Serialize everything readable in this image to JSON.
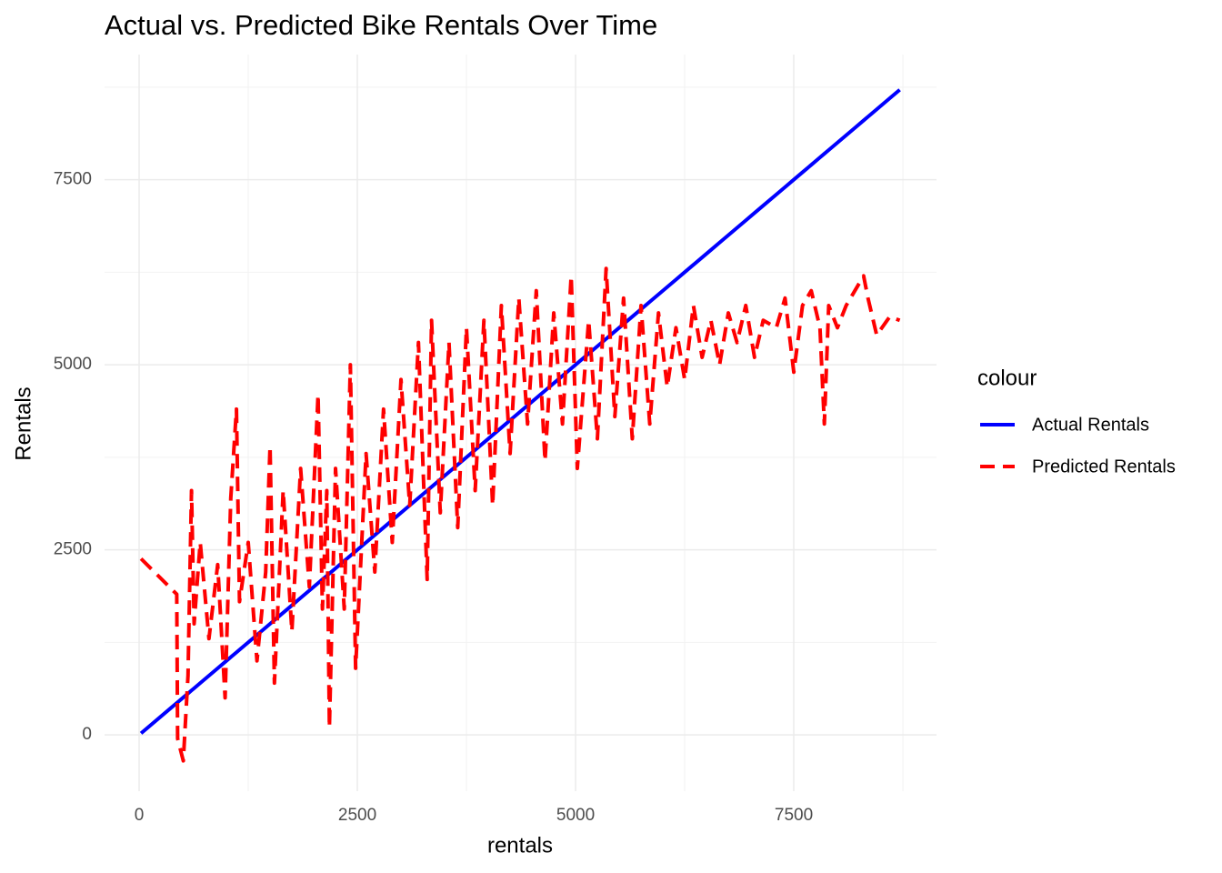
{
  "chart_data": {
    "type": "line",
    "title": "Actual vs. Predicted Bike Rentals Over Time",
    "x_label": "rentals",
    "y_label": "Rentals",
    "legend_title": "colour",
    "legend_position": "right",
    "grid": true,
    "xlim": [
      -396,
      9135
    ],
    "ylim": [
      -760,
      9190
    ],
    "xticks": [
      0,
      2500,
      5000,
      7500
    ],
    "yticks": [
      0,
      2500,
      5000,
      7500
    ],
    "xminorticks": [
      1250,
      3750,
      6250,
      8750
    ],
    "yminorticks": [
      1250,
      3750,
      6250,
      8750
    ],
    "x": [
      22,
      431,
      441,
      506,
      560,
      600,
      630,
      700,
      800,
      900,
      985,
      1050,
      1115,
      1150,
      1250,
      1350,
      1450,
      1500,
      1550,
      1650,
      1750,
      1850,
      1950,
      2050,
      2100,
      2150,
      2180,
      2250,
      2350,
      2420,
      2480,
      2600,
      2700,
      2800,
      2900,
      3000,
      3100,
      3200,
      3300,
      3350,
      3450,
      3550,
      3650,
      3750,
      3850,
      3950,
      4050,
      4150,
      4250,
      4350,
      4450,
      4550,
      4650,
      4750,
      4850,
      4950,
      5020,
      5150,
      5250,
      5350,
      5450,
      5550,
      5650,
      5750,
      5850,
      5950,
      6050,
      6150,
      6250,
      6350,
      6450,
      6550,
      6650,
      6750,
      6850,
      6950,
      7050,
      7150,
      7300,
      7400,
      7500,
      7600,
      7700,
      7800,
      7850,
      7900,
      8000,
      8100,
      8200,
      8300,
      8350,
      8450,
      8600,
      8714
    ],
    "series": [
      {
        "name": "Actual Rentals",
        "color": "#0000ff",
        "linestyle": "solid",
        "values": [
          22,
          431,
          441,
          506,
          560,
          600,
          630,
          700,
          800,
          900,
          985,
          1050,
          1115,
          1150,
          1250,
          1350,
          1450,
          1500,
          1550,
          1650,
          1750,
          1850,
          1950,
          2050,
          2100,
          2150,
          2180,
          2250,
          2350,
          2420,
          2480,
          2600,
          2700,
          2800,
          2900,
          3000,
          3100,
          3200,
          3300,
          3350,
          3450,
          3550,
          3650,
          3750,
          3850,
          3950,
          4050,
          4150,
          4250,
          4350,
          4450,
          4550,
          4650,
          4750,
          4850,
          4950,
          5020,
          5150,
          5250,
          5350,
          5450,
          5550,
          5650,
          5750,
          5850,
          5950,
          6050,
          6150,
          6250,
          6350,
          6450,
          6550,
          6650,
          6750,
          6850,
          6950,
          7050,
          7150,
          7300,
          7400,
          7500,
          7600,
          7700,
          7800,
          7850,
          7900,
          8000,
          8100,
          8200,
          8300,
          8350,
          8450,
          8600,
          8714
        ]
      },
      {
        "name": "Predicted Rentals",
        "color": "#ff0000",
        "linestyle": "dashed",
        "values": [
          2380,
          1900,
          -50,
          -350,
          800,
          3300,
          1500,
          2600,
          1300,
          2300,
          500,
          3200,
          4400,
          1800,
          2600,
          1000,
          2200,
          3900,
          700,
          3300,
          1400,
          3600,
          2000,
          4600,
          1700,
          3300,
          100,
          3600,
          1700,
          5000,
          900,
          3800,
          2200,
          4400,
          2600,
          4800,
          3100,
          5300,
          2100,
          5600,
          3000,
          5300,
          2800,
          5500,
          3300,
          5600,
          3100,
          5800,
          3800,
          5900,
          4200,
          6000,
          3700,
          5700,
          4200,
          6200,
          3600,
          5600,
          4000,
          6300,
          4300,
          5900,
          4000,
          5800,
          4200,
          5700,
          4700,
          5500,
          4800,
          5800,
          5100,
          5600,
          5000,
          5700,
          5300,
          5800,
          5100,
          5600,
          5500,
          5900,
          4900,
          5800,
          6000,
          5500,
          4200,
          5800,
          5500,
          5800,
          6000,
          6200,
          5900,
          5400,
          5650,
          5600
        ]
      }
    ]
  }
}
